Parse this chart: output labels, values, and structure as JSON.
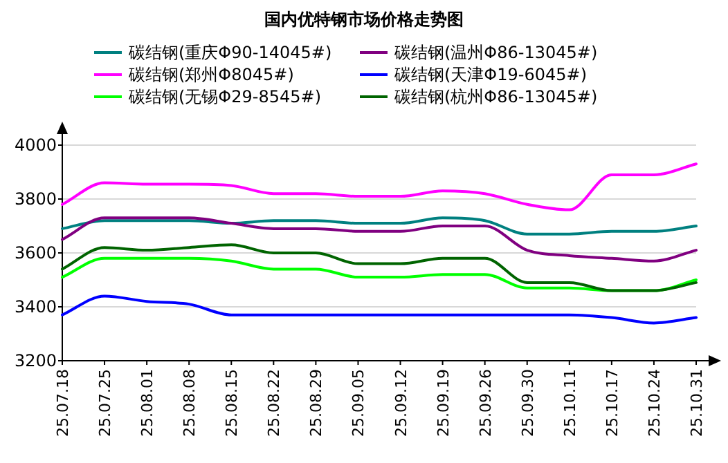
{
  "chart_data": {
    "type": "line",
    "title": "国内优特钢市场价格走势图",
    "categories": [
      "25.07.18",
      "25.07.25",
      "25.08.01",
      "25.08.08",
      "25.08.15",
      "25.08.22",
      "25.08.29",
      "25.09.05",
      "25.09.12",
      "25.09.19",
      "25.09.26",
      "25.09.30",
      "25.10.11",
      "25.10.17",
      "25.10.24",
      "25.10.31"
    ],
    "series": [
      {
        "name": "碳结钢(重庆Φ90-14045#)",
        "color": "#008080",
        "values": [
          3690,
          3720,
          3720,
          3720,
          3710,
          3720,
          3720,
          3710,
          3710,
          3730,
          3720,
          3670,
          3670,
          3680,
          3680,
          3700
        ]
      },
      {
        "name": "碳结钢(温州Φ86-13045#)",
        "color": "#800080",
        "values": [
          3650,
          3730,
          3730,
          3730,
          3710,
          3690,
          3690,
          3680,
          3680,
          3700,
          3700,
          3610,
          3590,
          3580,
          3570,
          3610
        ]
      },
      {
        "name": "碳结钢(郑州Φ8045#)",
        "color": "#ff00ff",
        "values": [
          3780,
          3860,
          3855,
          3855,
          3850,
          3820,
          3820,
          3810,
          3810,
          3830,
          3820,
          3780,
          3760,
          3890,
          3890,
          3930
        ]
      },
      {
        "name": "碳结钢(天津Φ19-6045#)",
        "color": "#0000ff",
        "values": [
          3370,
          3440,
          3420,
          3410,
          3370,
          3370,
          3370,
          3370,
          3370,
          3370,
          3370,
          3370,
          3370,
          3360,
          3340,
          3360
        ]
      },
      {
        "name": "碳结钢(无锡Φ29-8545#)",
        "color": "#00ff00",
        "values": [
          3510,
          3580,
          3580,
          3580,
          3570,
          3540,
          3540,
          3510,
          3510,
          3520,
          3520,
          3470,
          3470,
          3460,
          3460,
          3500
        ]
      },
      {
        "name": "碳结钢(杭州Φ86-13045#)",
        "color": "#006400",
        "values": [
          3540,
          3620,
          3610,
          3620,
          3630,
          3600,
          3600,
          3560,
          3560,
          3580,
          3580,
          3490,
          3490,
          3460,
          3460,
          3490
        ]
      }
    ],
    "ylim": [
      3200,
      4000
    ],
    "yticks": [
      3200,
      3400,
      3600,
      3800,
      4000
    ],
    "grid": "y",
    "legend": "top",
    "marker": "none",
    "line_style": "solid"
  }
}
